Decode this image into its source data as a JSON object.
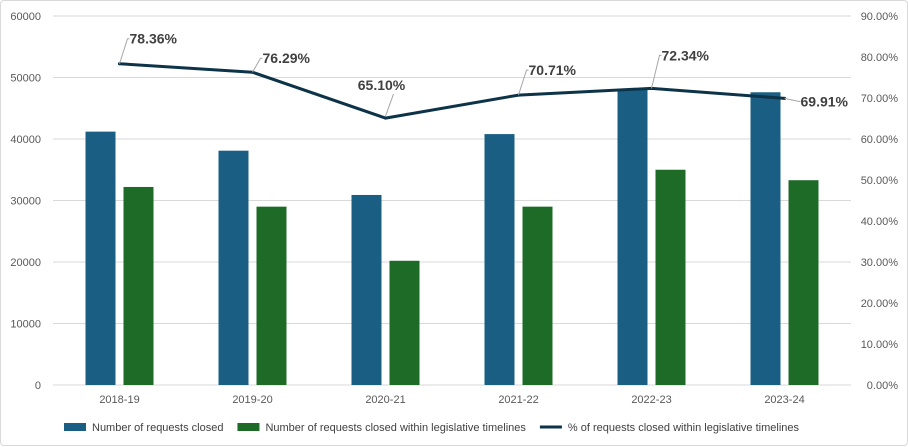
{
  "chart_data": {
    "type": "bar",
    "title": "",
    "categories": [
      "2018-19",
      "2019-20",
      "2020-21",
      "2021-22",
      "2022-23",
      "2023-24"
    ],
    "series": [
      {
        "name": "Number of requests closed",
        "kind": "bar",
        "axis": "left",
        "color": "#1a5f83",
        "values": [
          41200,
          38100,
          30900,
          40800,
          48100,
          47600
        ]
      },
      {
        "name": "Number of requests closed within legislative timelines",
        "kind": "bar",
        "axis": "left",
        "color": "#1e6b28",
        "values": [
          32200,
          29000,
          20200,
          29000,
          35000,
          33300
        ]
      },
      {
        "name": "% of requests closed within legislative timelines",
        "kind": "line",
        "axis": "right",
        "color": "#0d3349",
        "values": [
          78.36,
          76.29,
          65.1,
          70.71,
          72.34,
          69.91
        ],
        "labels": [
          "78.36%",
          "76.29%",
          "65.10%",
          "70.71%",
          "72.34%",
          "69.91%"
        ]
      }
    ],
    "y_left": {
      "min": 0,
      "max": 60000,
      "ticks": [
        "0",
        "10000",
        "20000",
        "30000",
        "40000",
        "50000",
        "60000"
      ]
    },
    "y_right": {
      "min": 0,
      "max": 90,
      "ticks": [
        "0.00%",
        "10.00%",
        "20.00%",
        "30.00%",
        "40.00%",
        "50.00%",
        "60.00%",
        "70.00%",
        "80.00%",
        "90.00%"
      ]
    },
    "gridlines": true,
    "legend_position": "bottom"
  }
}
